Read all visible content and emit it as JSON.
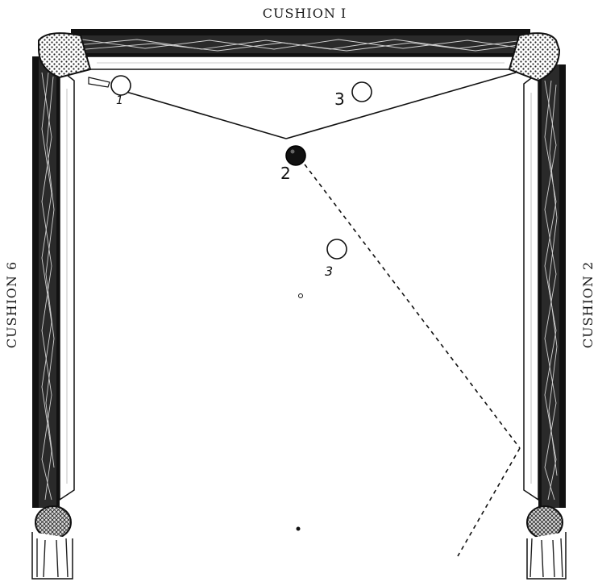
{
  "cushions": {
    "top": "CUSHION I",
    "right": "CUSHION 2",
    "left": "CUSHION 6"
  },
  "balls": [
    {
      "id": "cue",
      "label": "1"
    },
    {
      "id": "ball-3-top",
      "label": "3"
    },
    {
      "id": "ball-2",
      "label": "2"
    },
    {
      "id": "ball-3-mid",
      "label": "3"
    }
  ],
  "colors": {
    "ink": "#111111",
    "paper": "#ffffff",
    "rail": "#1c1c1c"
  }
}
